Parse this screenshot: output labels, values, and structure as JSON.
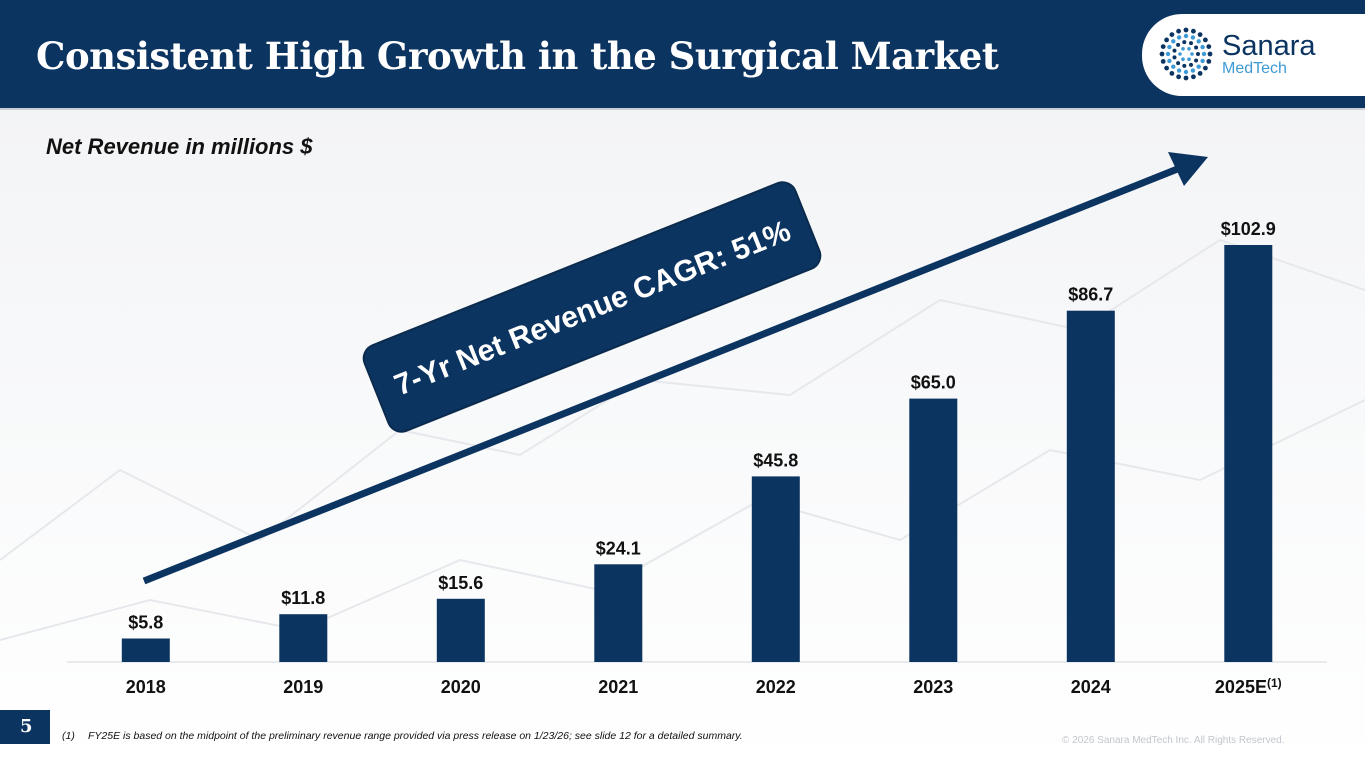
{
  "header": {
    "title": "Consistent High Growth in the Surgical Market"
  },
  "logo": {
    "name": "Sanara",
    "sub": "MedTech"
  },
  "subtitle": "Net Revenue in millions $",
  "chart_data": {
    "type": "bar",
    "title": "Net Revenue in millions $",
    "categories": [
      "2018",
      "2019",
      "2020",
      "2021",
      "2022",
      "2023",
      "2024",
      "2025E"
    ],
    "values": [
      5.8,
      11.8,
      15.6,
      24.1,
      45.8,
      65.0,
      86.7,
      102.9
    ],
    "value_labels": [
      "$5.8",
      "$11.8",
      "$15.6",
      "$24.1",
      "$45.8",
      "$65.0",
      "$86.7",
      "$102.9"
    ],
    "category_superscripts": [
      "",
      "",
      "",
      "",
      "",
      "",
      "",
      "(1)"
    ],
    "ylim": [
      0,
      105
    ],
    "grid": false,
    "legend": "none",
    "annotation": "7-Yr Net Revenue CAGR: 51%"
  },
  "colors": {
    "navy": "#0c3461",
    "accent": "#3e9ad6"
  },
  "footer": {
    "page_number": "5",
    "footnote_marker": "(1)",
    "footnote_text": "FY25E is based on the midpoint of the preliminary revenue range provided via press release on 1/23/26; see slide 12 for a detailed summary.",
    "copyright": "© 2026 Sanara MedTech Inc. All Rights Reserved."
  }
}
